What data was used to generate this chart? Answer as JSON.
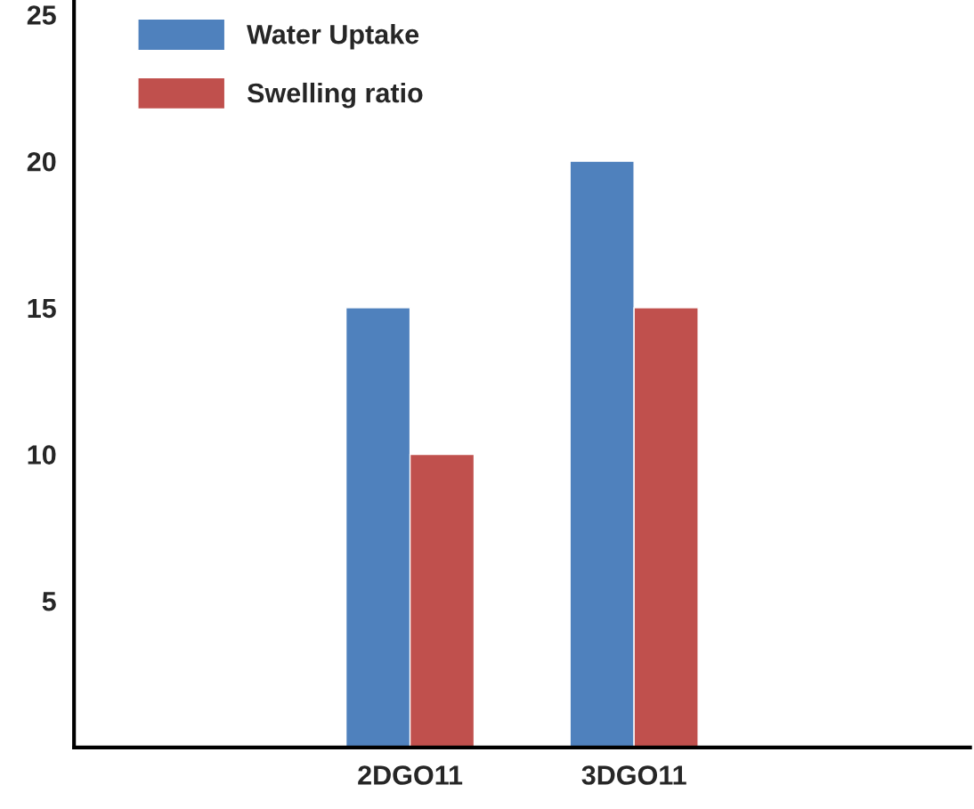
{
  "chart_data": {
    "type": "bar",
    "categories": [
      null,
      "2DGO11",
      "3DGO11",
      null
    ],
    "series": [
      {
        "name": "Water Uptake",
        "color": "#4f81bd",
        "values": [
          null,
          15,
          20,
          null
        ]
      },
      {
        "name": "Swelling ratio",
        "color": "#c0504d",
        "values": [
          null,
          10,
          15,
          null
        ]
      }
    ],
    "ylim": [
      0,
      25.5
    ],
    "yticks": [
      5,
      10,
      15,
      20,
      25
    ],
    "grid": false,
    "legend": "top left"
  }
}
